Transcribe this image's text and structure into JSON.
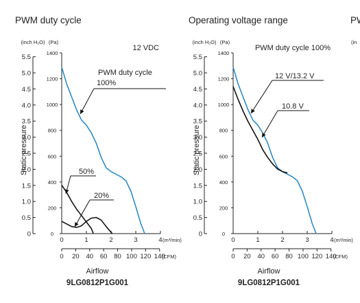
{
  "chart_data": [
    {
      "type": "line",
      "title": "PWM duty cycle",
      "units_label_left": "(inch H₂O)",
      "units_label_right": "(Pa)",
      "ylabel": "Static pressure",
      "xlabel": "Airflow",
      "x_unit_top": "(m³/min)",
      "x_unit_bottom": "(CFM)",
      "model": "9LG0812P1G001",
      "condition": "12 VDC",
      "xlim_m3min": [
        0,
        4
      ],
      "ylim_pa": [
        0,
        1400
      ],
      "x_ticks_m3min": [
        "0",
        "1",
        "2",
        "3",
        "4"
      ],
      "x_ticks_cfm": [
        "0",
        "20",
        "40",
        "60",
        "80",
        "100",
        "120",
        "140"
      ],
      "y_ticks_inch": [
        "0",
        "0.5",
        "1.0",
        "1.5",
        "2.0",
        "2.5",
        "3.0",
        "3.5",
        "4.0",
        "4.5",
        "5.0",
        "5.5"
      ],
      "y_ticks_pa": [
        "0",
        "200",
        "400",
        "600",
        "800",
        "1000",
        "1200",
        "1400"
      ],
      "grid": false,
      "annotations": [
        {
          "label": "PWM duty cycle",
          "label2": "100%",
          "target_series": 0
        },
        {
          "label": "50%",
          "target_series": 1
        },
        {
          "label": "20%",
          "target_series": 2
        }
      ],
      "series": [
        {
          "color": "#2d8bc4",
          "x": [
            0.0,
            0.2,
            0.4,
            0.6,
            0.8,
            1.0,
            1.2,
            1.4,
            1.6,
            1.8,
            2.0,
            2.2,
            2.4,
            2.6,
            2.8,
            3.0,
            3.2,
            3.36
          ],
          "y": [
            1290,
            1160,
            1060,
            960,
            880,
            840,
            780,
            700,
            590,
            510,
            480,
            460,
            440,
            410,
            330,
            210,
            80,
            0
          ]
        },
        {
          "color": "#111111",
          "x": [
            0.0,
            0.2,
            0.4,
            0.6,
            0.8,
            1.0,
            1.2,
            1.28
          ],
          "y": [
            375,
            320,
            250,
            190,
            140,
            90,
            40,
            0
          ]
        },
        {
          "color": "#111111",
          "x": [
            0.0,
            0.2,
            0.4,
            0.6,
            0.8,
            1.0,
            1.2,
            1.4,
            1.6,
            1.8,
            2.0,
            2.05
          ],
          "y": [
            95,
            75,
            55,
            48,
            60,
            95,
            120,
            125,
            105,
            55,
            10,
            0
          ]
        }
      ]
    },
    {
      "type": "line",
      "title": "Operating voltage range",
      "units_label_left": "(inch H₂O)",
      "units_label_right": "(Pa)",
      "ylabel": "Static pressure",
      "xlabel": "Airflow",
      "x_unit_top": "(m³/min)",
      "x_unit_bottom": "(CFM)",
      "model": "9LG0812P1G001",
      "condition": "PWM duty cycle 100%",
      "xlim_m3min": [
        0,
        4
      ],
      "ylim_pa": [
        0,
        1400
      ],
      "x_ticks_m3min": [
        "0",
        "1",
        "2",
        "3",
        "4"
      ],
      "x_ticks_cfm": [
        "0",
        "20",
        "40",
        "60",
        "80",
        "100",
        "120",
        "140"
      ],
      "y_ticks_inch": [
        "0",
        "0.5",
        "1.0",
        "1.5",
        "2.0",
        "2.5",
        "3.0",
        "3.5",
        "4.0",
        "4.5",
        "5.0",
        "5.5"
      ],
      "y_ticks_pa": [
        "0",
        "200",
        "400",
        "600",
        "800",
        "1000",
        "1200",
        "1400"
      ],
      "grid": false,
      "annotations": [
        {
          "label": "12 V/13.2 V",
          "target_series": 0
        },
        {
          "label": "10.8 V",
          "target_series": 1
        }
      ],
      "series": [
        {
          "color": "#2d8bc4",
          "x": [
            0.0,
            0.2,
            0.4,
            0.6,
            0.8,
            1.0,
            1.2,
            1.4,
            1.6,
            1.8,
            2.0,
            2.2,
            2.4,
            2.6,
            2.8,
            3.0,
            3.2,
            3.36
          ],
          "y": [
            1290,
            1160,
            1060,
            960,
            880,
            840,
            780,
            700,
            590,
            510,
            480,
            460,
            440,
            410,
            330,
            210,
            80,
            0
          ]
        },
        {
          "color": "#111111",
          "x": [
            0.0,
            0.2,
            0.4,
            0.6,
            0.8,
            1.0,
            1.2,
            1.4,
            1.6,
            1.8,
            2.0,
            2.2
          ],
          "y": [
            1140,
            1040,
            950,
            870,
            800,
            730,
            650,
            590,
            540,
            500,
            480,
            470
          ]
        }
      ]
    },
    {
      "type": "line",
      "title": "PW",
      "units_label_left": "(in"
    }
  ]
}
